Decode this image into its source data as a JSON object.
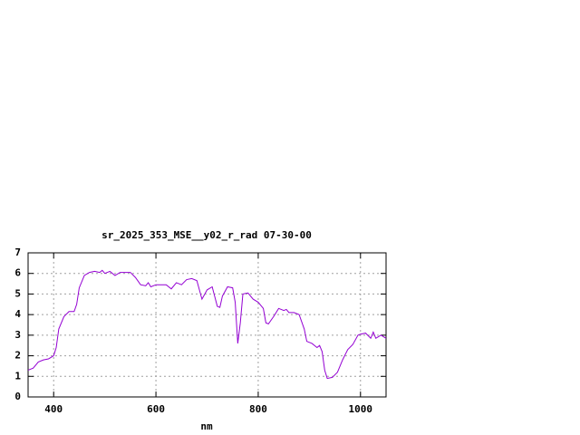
{
  "chart_data": {
    "type": "line",
    "title": "sr_2025_353_MSE__y02_r_rad 07-30-00",
    "x_label": "nm",
    "x": [
      350,
      360,
      370,
      380,
      390,
      400,
      405,
      410,
      420,
      430,
      440,
      445,
      450,
      460,
      470,
      480,
      490,
      495,
      500,
      510,
      520,
      530,
      540,
      550,
      560,
      570,
      580,
      585,
      590,
      600,
      610,
      620,
      630,
      640,
      650,
      660,
      670,
      680,
      690,
      700,
      710,
      720,
      725,
      730,
      740,
      750,
      755,
      760,
      765,
      770,
      780,
      790,
      800,
      810,
      815,
      820,
      830,
      840,
      850,
      855,
      860,
      870,
      880,
      890,
      895,
      905,
      915,
      920,
      925,
      930,
      935,
      945,
      955,
      965,
      975,
      985,
      995,
      1000,
      1010,
      1020,
      1025,
      1030,
      1040,
      1050
    ],
    "series": [
      {
        "color": "#9400d3",
        "values": [
          1.3,
          1.4,
          1.7,
          1.8,
          1.85,
          2.0,
          2.4,
          3.3,
          3.9,
          4.15,
          4.15,
          4.5,
          5.3,
          5.9,
          6.05,
          6.1,
          6.05,
          6.15,
          6.0,
          6.1,
          5.9,
          6.05,
          6.05,
          6.05,
          5.8,
          5.45,
          5.4,
          5.55,
          5.35,
          5.45,
          5.45,
          5.45,
          5.25,
          5.55,
          5.45,
          5.7,
          5.75,
          5.65,
          4.75,
          5.2,
          5.35,
          4.4,
          4.35,
          4.9,
          5.35,
          5.3,
          4.6,
          2.6,
          3.6,
          5.0,
          5.05,
          4.75,
          4.6,
          4.3,
          3.6,
          3.55,
          3.9,
          4.3,
          4.2,
          4.25,
          4.1,
          4.1,
          4.0,
          3.3,
          2.7,
          2.6,
          2.4,
          2.5,
          2.2,
          1.3,
          0.9,
          0.95,
          1.2,
          1.8,
          2.3,
          2.55,
          3.0,
          3.05,
          3.1,
          2.85,
          3.15,
          2.85,
          3.0,
          2.85
        ]
      }
    ],
    "xlim": [
      350,
      1050
    ],
    "ylim": [
      0,
      7
    ],
    "xticks": [
      400,
      600,
      800,
      1000
    ],
    "yticks": [
      0,
      1,
      2,
      3,
      4,
      5,
      6,
      7
    ],
    "grid": true
  }
}
